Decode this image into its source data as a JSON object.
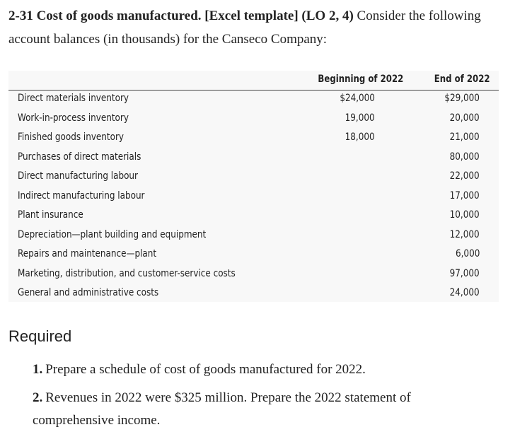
{
  "heading": {
    "bold": "2-31 Cost of goods manufactured. [Excel template] (LO 2, 4)",
    "text": "Consider the following account balances (in thousands) for the Canseco Company:"
  },
  "table": {
    "headers": [
      "Beginning of 2022",
      "End of 2022"
    ],
    "rows": [
      {
        "label": "Direct materials inventory",
        "beginning": "$24,000",
        "end": "$29,000"
      },
      {
        "label": "Work-in-process inventory",
        "beginning": "19,000",
        "end": "20,000"
      },
      {
        "label": "Finished goods inventory",
        "beginning": "18,000",
        "end": "21,000"
      },
      {
        "label": "Purchases of direct materials",
        "end": "80,000"
      },
      {
        "label": "Direct manufacturing labour",
        "end": "22,000"
      },
      {
        "label": "Indirect manufacturing labour",
        "end": "17,000"
      },
      {
        "label": "Plant insurance",
        "end": "10,000"
      },
      {
        "label": "Depreciation—plant building and equipment",
        "end": "12,000"
      },
      {
        "label": "Repairs and maintenance—plant",
        "end": "6,000"
      },
      {
        "label": "Marketing, distribution, and customer-service costs",
        "end": "97,000"
      },
      {
        "label": "General and administrative costs",
        "end": "24,000"
      }
    ]
  },
  "required": {
    "title": "Required",
    "items": [
      {
        "number": "1.",
        "text": "Prepare a schedule of cost of goods manufactured for 2022."
      },
      {
        "number": "2.",
        "text": "Revenues in 2022 were $325 million. Prepare the 2022 statement of comprehensive income."
      }
    ]
  }
}
